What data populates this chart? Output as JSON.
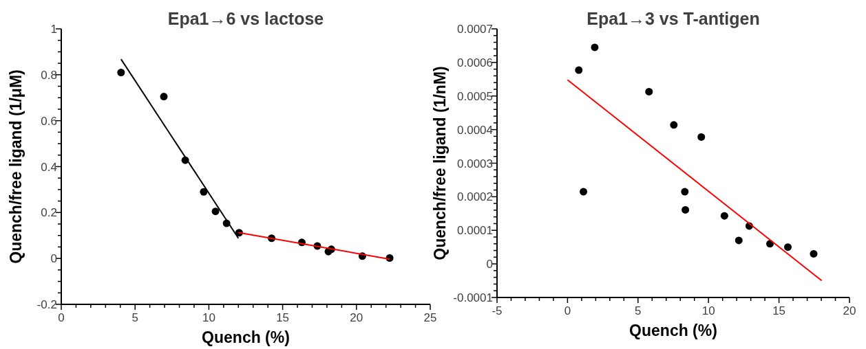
{
  "chart_data": [
    {
      "type": "scatter",
      "title": "Epa1→6 vs lactose",
      "xlabel": "Quench (%)",
      "ylabel": "Quench/free ligand (1/μM)",
      "xlim": [
        0,
        25
      ],
      "ylim": [
        -0.2,
        1
      ],
      "xticks": [
        0,
        5,
        10,
        15,
        20,
        25,
        {
          "value": 1,
          "label": null
        },
        {
          "value": 2,
          "label": null
        },
        {
          "value": 3,
          "label": null
        },
        {
          "value": 4,
          "label": null
        },
        {
          "value": 6,
          "label": null
        },
        {
          "value": 7,
          "label": null
        },
        {
          "value": 8,
          "label": null
        },
        {
          "value": 9,
          "label": null
        },
        {
          "value": 11,
          "label": null
        },
        {
          "value": 12,
          "label": null
        },
        {
          "value": 13,
          "label": null
        },
        {
          "value": 14,
          "label": null
        },
        {
          "value": 16,
          "label": null
        },
        {
          "value": 17,
          "label": null
        },
        {
          "value": 18,
          "label": null
        },
        {
          "value": 19,
          "label": null
        },
        {
          "value": 21,
          "label": null
        },
        {
          "value": 22,
          "label": null
        },
        {
          "value": 23,
          "label": null
        },
        {
          "value": 24,
          "label": null
        }
      ],
      "yticks": [
        -0.2,
        0,
        0.2,
        0.4,
        0.6,
        0.8,
        1,
        {
          "value": -0.15,
          "label": null
        },
        {
          "value": -0.1,
          "label": null
        },
        {
          "value": -0.05,
          "label": null
        },
        {
          "value": 0.05,
          "label": null
        },
        {
          "value": 0.1,
          "label": null
        },
        {
          "value": 0.15,
          "label": null
        },
        {
          "value": 0.25,
          "label": null
        },
        {
          "value": 0.3,
          "label": null
        },
        {
          "value": 0.35,
          "label": null
        },
        {
          "value": 0.45,
          "label": null
        },
        {
          "value": 0.5,
          "label": null
        },
        {
          "value": 0.55,
          "label": null
        },
        {
          "value": 0.65,
          "label": null
        },
        {
          "value": 0.7,
          "label": null
        },
        {
          "value": 0.75,
          "label": null
        },
        {
          "value": 0.85,
          "label": null
        },
        {
          "value": 0.9,
          "label": null
        },
        {
          "value": 0.95,
          "label": null
        }
      ],
      "marker": "circle",
      "series": [
        {
          "color": "#000000",
          "x": [
            4.05,
            6.95,
            8.4,
            9.65,
            10.45,
            11.2,
            12.05,
            14.25,
            16.3,
            17.35,
            18.1,
            18.3,
            20.4,
            22.25
          ],
          "values": [
            0.81,
            0.705,
            0.428,
            0.29,
            0.205,
            0.153,
            0.112,
            0.088,
            0.07,
            0.054,
            0.03,
            0.04,
            0.01,
            0.002
          ]
        },
        {
          "type": "line",
          "marker": "none",
          "color": "#000000",
          "x": [
            4.05,
            12.0
          ],
          "values": [
            0.868,
            0.088
          ]
        },
        {
          "type": "line",
          "marker": "none",
          "color": "#ff0000",
          "x": [
            12.0,
            22.25
          ],
          "values": [
            0.113,
            -0.003
          ]
        }
      ]
    },
    {
      "type": "scatter",
      "title": "Epa1→3 vs T-antigen",
      "xlabel": "Quench (%)",
      "ylabel": "Quench/free ligand (1/nM)",
      "xlim": [
        -5,
        20
      ],
      "ylim": [
        -0.0001,
        0.0007
      ],
      "xticks": [
        -5,
        0,
        5,
        10,
        15,
        20,
        {
          "value": -4,
          "label": null
        },
        {
          "value": -3,
          "label": null
        },
        {
          "value": -2,
          "label": null
        },
        {
          "value": -1,
          "label": null
        },
        {
          "value": 1,
          "label": null
        },
        {
          "value": 2,
          "label": null
        },
        {
          "value": 3,
          "label": null
        },
        {
          "value": 4,
          "label": null
        },
        {
          "value": 6,
          "label": null
        },
        {
          "value": 7,
          "label": null
        },
        {
          "value": 8,
          "label": null
        },
        {
          "value": 9,
          "label": null
        },
        {
          "value": 11,
          "label": null
        },
        {
          "value": 12,
          "label": null
        },
        {
          "value": 13,
          "label": null
        },
        {
          "value": 14,
          "label": null
        },
        {
          "value": 16,
          "label": null
        },
        {
          "value": 17,
          "label": null
        },
        {
          "value": 18,
          "label": null
        },
        {
          "value": 19,
          "label": null
        }
      ],
      "yticks": [
        -0.0001,
        0,
        0.0001,
        0.0002,
        0.0003,
        0.0004,
        0.0005,
        0.0006,
        0.0007,
        {
          "value": -8e-05,
          "label": null
        },
        {
          "value": -6e-05,
          "label": null
        },
        {
          "value": -4e-05,
          "label": null
        },
        {
          "value": -2e-05,
          "label": null
        },
        {
          "value": 2e-05,
          "label": null
        },
        {
          "value": 4e-05,
          "label": null
        },
        {
          "value": 6e-05,
          "label": null
        },
        {
          "value": 8e-05,
          "label": null
        },
        {
          "value": 0.00012,
          "label": null
        },
        {
          "value": 0.00014,
          "label": null
        },
        {
          "value": 0.00016,
          "label": null
        },
        {
          "value": 0.00018,
          "label": null
        },
        {
          "value": 0.00022,
          "label": null
        },
        {
          "value": 0.00024,
          "label": null
        },
        {
          "value": 0.00026,
          "label": null
        },
        {
          "value": 0.00028,
          "label": null
        },
        {
          "value": 0.00032,
          "label": null
        },
        {
          "value": 0.00034,
          "label": null
        },
        {
          "value": 0.00036,
          "label": null
        },
        {
          "value": 0.00038,
          "label": null
        },
        {
          "value": 0.00042,
          "label": null
        },
        {
          "value": 0.00044,
          "label": null
        },
        {
          "value": 0.00046,
          "label": null
        },
        {
          "value": 0.00048,
          "label": null
        },
        {
          "value": 0.00052,
          "label": null
        },
        {
          "value": 0.00054,
          "label": null
        },
        {
          "value": 0.00056,
          "label": null
        },
        {
          "value": 0.00058,
          "label": null
        },
        {
          "value": 0.00062,
          "label": null
        },
        {
          "value": 0.00064,
          "label": null
        },
        {
          "value": 0.00066,
          "label": null
        },
        {
          "value": 0.00068,
          "label": null
        }
      ],
      "marker": "circle",
      "series": [
        {
          "color": "#000000",
          "x": [
            0.8,
            1.93,
            1.13,
            5.78,
            7.54,
            9.49,
            8.32,
            8.36,
            11.13,
            12.89,
            12.15,
            14.36,
            15.63,
            17.46
          ],
          "values": [
            0.000577,
            0.000645,
            0.000215,
            0.000513,
            0.000414,
            0.000378,
            0.000215,
            0.000161,
            0.000143,
            0.000113,
            7e-05,
            6e-05,
            5e-05,
            3e-05
          ]
        },
        {
          "type": "line",
          "marker": "none",
          "color": "#ff0000",
          "x": [
            0,
            18.03
          ],
          "values": [
            0.000548,
            -5e-05
          ]
        }
      ]
    }
  ]
}
